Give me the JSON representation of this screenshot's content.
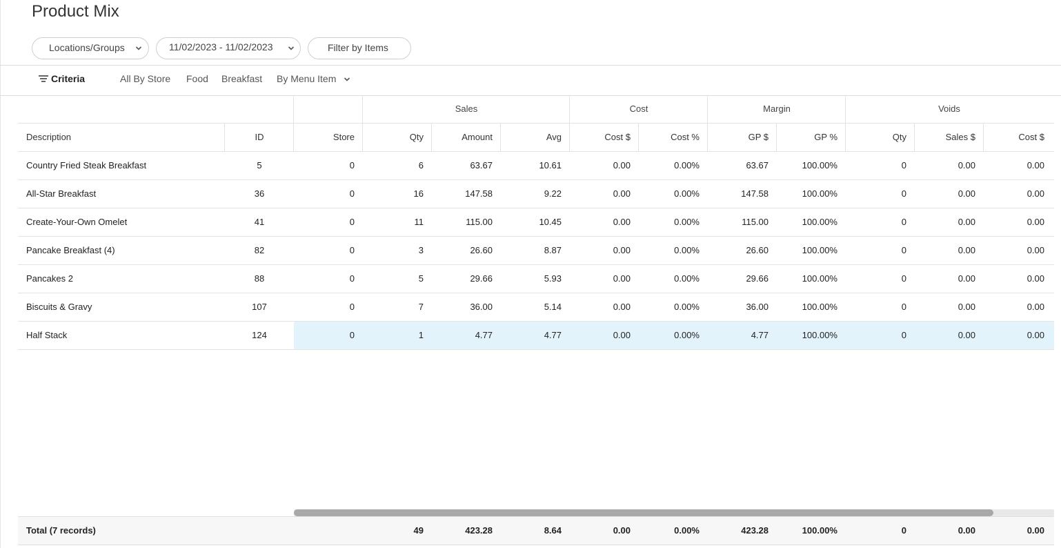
{
  "page": {
    "title": "Product Mix"
  },
  "filters": {
    "locations_label": "Locations/Groups",
    "date_range": "11/02/2023 - 11/02/2023",
    "filter_items_label": "Filter by Items"
  },
  "criteria": {
    "button_label": "Criteria",
    "items": [
      "All By Store",
      "Food",
      "Breakfast",
      "By Menu Item"
    ]
  },
  "table": {
    "groups": {
      "sales": "Sales",
      "cost": "Cost",
      "margin": "Margin",
      "voids": "Voids"
    },
    "columns": [
      "Description",
      "ID",
      "Store",
      "Qty",
      "Amount",
      "Avg",
      "Cost $",
      "Cost %",
      "GP $",
      "GP %",
      "Qty",
      "Sales $",
      "Cost $"
    ],
    "rows": [
      [
        "Country Fried Steak Breakfast",
        "5",
        "0",
        "6",
        "63.67",
        "10.61",
        "0.00",
        "0.00%",
        "63.67",
        "100.00%",
        "0",
        "0.00",
        "0.00"
      ],
      [
        "All-Star Breakfast",
        "36",
        "0",
        "16",
        "147.58",
        "9.22",
        "0.00",
        "0.00%",
        "147.58",
        "100.00%",
        "0",
        "0.00",
        "0.00"
      ],
      [
        "Create-Your-Own Omelet",
        "41",
        "0",
        "11",
        "115.00",
        "10.45",
        "0.00",
        "0.00%",
        "115.00",
        "100.00%",
        "0",
        "0.00",
        "0.00"
      ],
      [
        "Pancake Breakfast (4)",
        "82",
        "0",
        "3",
        "26.60",
        "8.87",
        "0.00",
        "0.00%",
        "26.60",
        "100.00%",
        "0",
        "0.00",
        "0.00"
      ],
      [
        "Pancakes 2",
        "88",
        "0",
        "5",
        "29.66",
        "5.93",
        "0.00",
        "0.00%",
        "29.66",
        "100.00%",
        "0",
        "0.00",
        "0.00"
      ],
      [
        "Biscuits & Gravy",
        "107",
        "0",
        "7",
        "36.00",
        "5.14",
        "0.00",
        "0.00%",
        "36.00",
        "100.00%",
        "0",
        "0.00",
        "0.00"
      ],
      [
        "Half Stack",
        "124",
        "0",
        "1",
        "4.77",
        "4.77",
        "0.00",
        "0.00%",
        "4.77",
        "100.00%",
        "0",
        "0.00",
        "0.00"
      ]
    ],
    "highlighted_row": 6,
    "highlight_color": "#e3f3fb",
    "total": {
      "label": "Total (7 records)",
      "values": [
        "",
        "",
        "49",
        "423.28",
        "8.64",
        "0.00",
        "0.00%",
        "423.28",
        "100.00%",
        "0",
        "0.00",
        "0.00"
      ]
    }
  }
}
